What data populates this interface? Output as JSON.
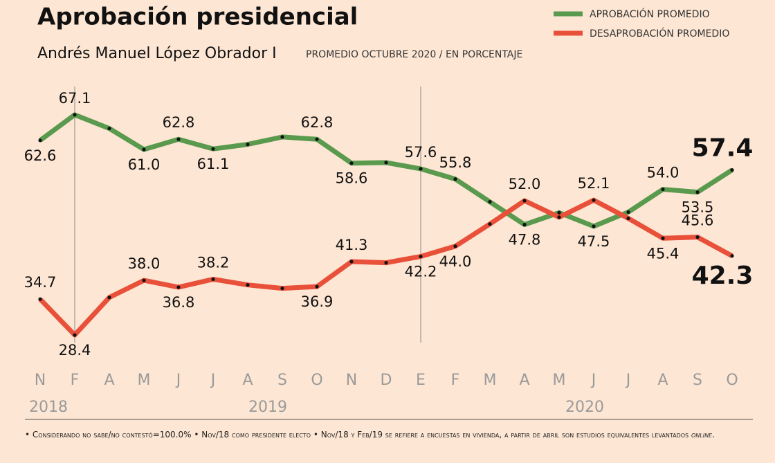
{
  "chart_data": {
    "type": "line",
    "title": "Aprobación presidencial",
    "subtitle": "Andrés Manuel López Obrador I",
    "subtitle_note": "PROMEDIO OCTUBRE 2020 / EN PORCENTAJE",
    "categories": [
      "N",
      "F",
      "A",
      "M",
      "J",
      "J",
      "A",
      "S",
      "O",
      "N",
      "D",
      "E",
      "F",
      "M",
      "A",
      "M",
      "J",
      "J",
      "A",
      "S",
      "O"
    ],
    "years": [
      "2018",
      "2019",
      "2020"
    ],
    "ylim": [
      25,
      70
    ],
    "series": [
      {
        "name": "APROBACIÓN PROMEDIO",
        "color": "#5a9a4e",
        "values": [
          62.6,
          67.1,
          64.7,
          61.0,
          62.8,
          61.1,
          61.9,
          63.2,
          62.8,
          58.6,
          58.7,
          57.6,
          55.8,
          51.8,
          47.8,
          49.9,
          47.5,
          50.0,
          54.0,
          53.5,
          57.4
        ],
        "value_labels": [
          "62.6",
          "67.1",
          null,
          "61.0",
          "62.8",
          "61.1",
          null,
          null,
          "62.8",
          "58.6",
          null,
          "57.6",
          "55.8",
          null,
          "47.8",
          null,
          "47.5",
          null,
          "54.0",
          "53.5",
          "57.4"
        ]
      },
      {
        "name": "DESAPROBACIÓN PROMEDIO",
        "color": "#e8503a",
        "values": [
          34.7,
          28.4,
          35.0,
          38.0,
          36.8,
          38.2,
          37.2,
          36.6,
          36.9,
          41.3,
          41.1,
          42.2,
          44.0,
          47.9,
          52.0,
          49.1,
          52.1,
          48.9,
          45.4,
          45.6,
          42.3
        ],
        "value_labels": [
          "34.7",
          "28.4",
          null,
          "38.0",
          "36.8",
          "38.2",
          null,
          null,
          "36.9",
          "41.3",
          null,
          "42.2",
          "44.0",
          null,
          "52.0",
          null,
          "52.1",
          null,
          "45.4",
          "45.6",
          "42.3"
        ]
      }
    ],
    "notes": [
      "Considerando no sabe/no contestó=100.0%",
      "Nov/18 como presidente electo",
      "Nov/18 y Feb/19 se refiere a encuestas en vivienda, a partir de abril son estudios equivalentes levantados",
      "online"
    ]
  }
}
